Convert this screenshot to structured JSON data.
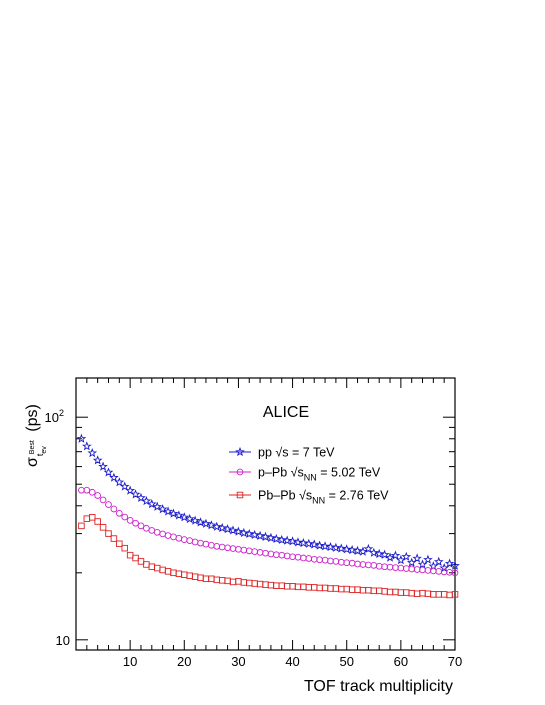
{
  "chart_data": {
    "type": "scatter",
    "header": "ALICE",
    "xlabel": "TOF track multiplicity",
    "ylabel": "σ t_ev^Best (ps)",
    "xlim": [
      0,
      70
    ],
    "ylim": [
      9,
      150
    ],
    "yscale": "log",
    "x_ticks": [
      10,
      20,
      30,
      40,
      50,
      60,
      70
    ],
    "y_ticks": [
      {
        "value": 10,
        "label": "10"
      },
      {
        "value": 100,
        "label": "10",
        "exp": "2"
      }
    ],
    "legend_position": "top-right",
    "series": [
      {
        "name": "pp √s = 7 TeV",
        "legend": {
          "prefix": "pp ",
          "root": "s",
          "sub": "",
          "suffix": " = 7 TeV"
        },
        "marker": "star",
        "color": "#1a1acc",
        "x": [
          1,
          2,
          3,
          4,
          5,
          6,
          7,
          8,
          9,
          10,
          11,
          12,
          13,
          14,
          15,
          16,
          17,
          18,
          19,
          20,
          21,
          22,
          23,
          24,
          25,
          26,
          27,
          28,
          29,
          30,
          31,
          32,
          33,
          34,
          35,
          36,
          37,
          38,
          39,
          40,
          41,
          42,
          43,
          44,
          45,
          46,
          47,
          48,
          49,
          50,
          51,
          52,
          53,
          54,
          55,
          56,
          57,
          58,
          59,
          60,
          61,
          62,
          63,
          64,
          65,
          66,
          67,
          68,
          69,
          70
        ],
        "y": [
          80,
          74,
          69,
          64,
          60,
          56.5,
          53.5,
          51,
          48.8,
          46.8,
          45,
          43.4,
          42,
          40.7,
          39.6,
          38.6,
          37.7,
          36.9,
          36.2,
          35.5,
          34.9,
          34.3,
          33.7,
          33.2,
          32.7,
          32.2,
          31.8,
          31.4,
          31.0,
          30.6,
          30.2,
          29.9,
          29.6,
          29.3,
          29.0,
          28.7,
          28.4,
          28.1,
          27.9,
          27.7,
          27.4,
          27.2,
          27.0,
          26.8,
          26.5,
          26.3,
          26.1,
          25.9,
          25.7,
          25.5,
          25.3,
          25.1,
          24.9,
          25.6,
          24.6,
          24.3,
          24.1,
          23.4,
          23.9,
          22.8,
          23.6,
          22.2,
          23.2,
          21.8,
          22.9,
          21.4,
          22.4,
          21.0,
          22.0,
          21.5
        ]
      },
      {
        "name": "p–Pb √sNN = 5.02 TeV",
        "legend": {
          "prefix": "p–Pb ",
          "root": "s",
          "sub": "NN",
          "suffix": " = 5.02 TeV"
        },
        "marker": "circle",
        "color": "#cc22cc",
        "x": [
          1,
          2,
          3,
          4,
          5,
          6,
          7,
          8,
          9,
          10,
          11,
          12,
          13,
          14,
          15,
          16,
          17,
          18,
          19,
          20,
          21,
          22,
          23,
          24,
          25,
          26,
          27,
          28,
          29,
          30,
          31,
          32,
          33,
          34,
          35,
          36,
          37,
          38,
          39,
          40,
          41,
          42,
          43,
          44,
          45,
          46,
          47,
          48,
          49,
          50,
          51,
          52,
          53,
          54,
          55,
          56,
          57,
          58,
          59,
          60,
          61,
          62,
          63,
          64,
          65,
          66,
          67,
          68,
          69,
          70
        ],
        "y": [
          47,
          47,
          46,
          44.5,
          42.5,
          40.5,
          38.7,
          37,
          35.6,
          34.4,
          33.4,
          32.5,
          31.7,
          31.0,
          30.4,
          29.9,
          29.4,
          29.0,
          28.6,
          28.2,
          27.9,
          27.5,
          27.2,
          26.9,
          26.6,
          26.3,
          26.1,
          25.9,
          25.7,
          25.5,
          25.3,
          25.1,
          24.9,
          24.7,
          24.5,
          24.3,
          24.1,
          24.0,
          23.8,
          23.6,
          23.5,
          23.3,
          23.2,
          23.0,
          22.9,
          22.8,
          22.6,
          22.5,
          22.3,
          22.2,
          22.1,
          21.9,
          21.8,
          21.7,
          21.6,
          21.4,
          21.3,
          21.2,
          21.1,
          21.0,
          20.9,
          20.8,
          20.7,
          20.6,
          20.5,
          20.4,
          20.3,
          20.2,
          20.1,
          20.0
        ]
      },
      {
        "name": "Pb–Pb √sNN = 2.76 TeV",
        "legend": {
          "prefix": "Pb–Pb ",
          "root": "s",
          "sub": "NN",
          "suffix": " = 2.76 TeV"
        },
        "marker": "square",
        "color": "#dd2222",
        "x": [
          1,
          2,
          3,
          4,
          5,
          6,
          7,
          8,
          9,
          10,
          11,
          12,
          13,
          14,
          15,
          16,
          17,
          18,
          19,
          20,
          21,
          22,
          23,
          24,
          25,
          26,
          27,
          28,
          29,
          30,
          31,
          32,
          33,
          34,
          35,
          36,
          37,
          38,
          39,
          40,
          41,
          42,
          43,
          44,
          45,
          46,
          47,
          48,
          49,
          50,
          51,
          52,
          53,
          54,
          55,
          56,
          57,
          58,
          59,
          60,
          61,
          62,
          63,
          64,
          65,
          66,
          67,
          68,
          69,
          70
        ],
        "y": [
          32.5,
          35,
          35.5,
          34,
          32,
          30,
          28.5,
          27,
          25.8,
          24,
          23.3,
          22.5,
          21.8,
          21.3,
          21.0,
          20.6,
          20.3,
          20.0,
          19.8,
          19.6,
          19.4,
          19.2,
          19.0,
          18.8,
          18.8,
          18.6,
          18.5,
          18.4,
          18.2,
          18.3,
          18.1,
          18.0,
          17.9,
          17.8,
          17.7,
          17.6,
          17.5,
          17.5,
          17.4,
          17.4,
          17.3,
          17.3,
          17.2,
          17.2,
          17.1,
          17.1,
          17.0,
          17.0,
          16.9,
          16.9,
          16.8,
          16.8,
          16.7,
          16.7,
          16.6,
          16.6,
          16.5,
          16.4,
          16.4,
          16.3,
          16.3,
          16.2,
          16.1,
          16.2,
          16.1,
          16.0,
          16.0,
          16.0,
          15.9,
          16.0
        ]
      }
    ]
  }
}
